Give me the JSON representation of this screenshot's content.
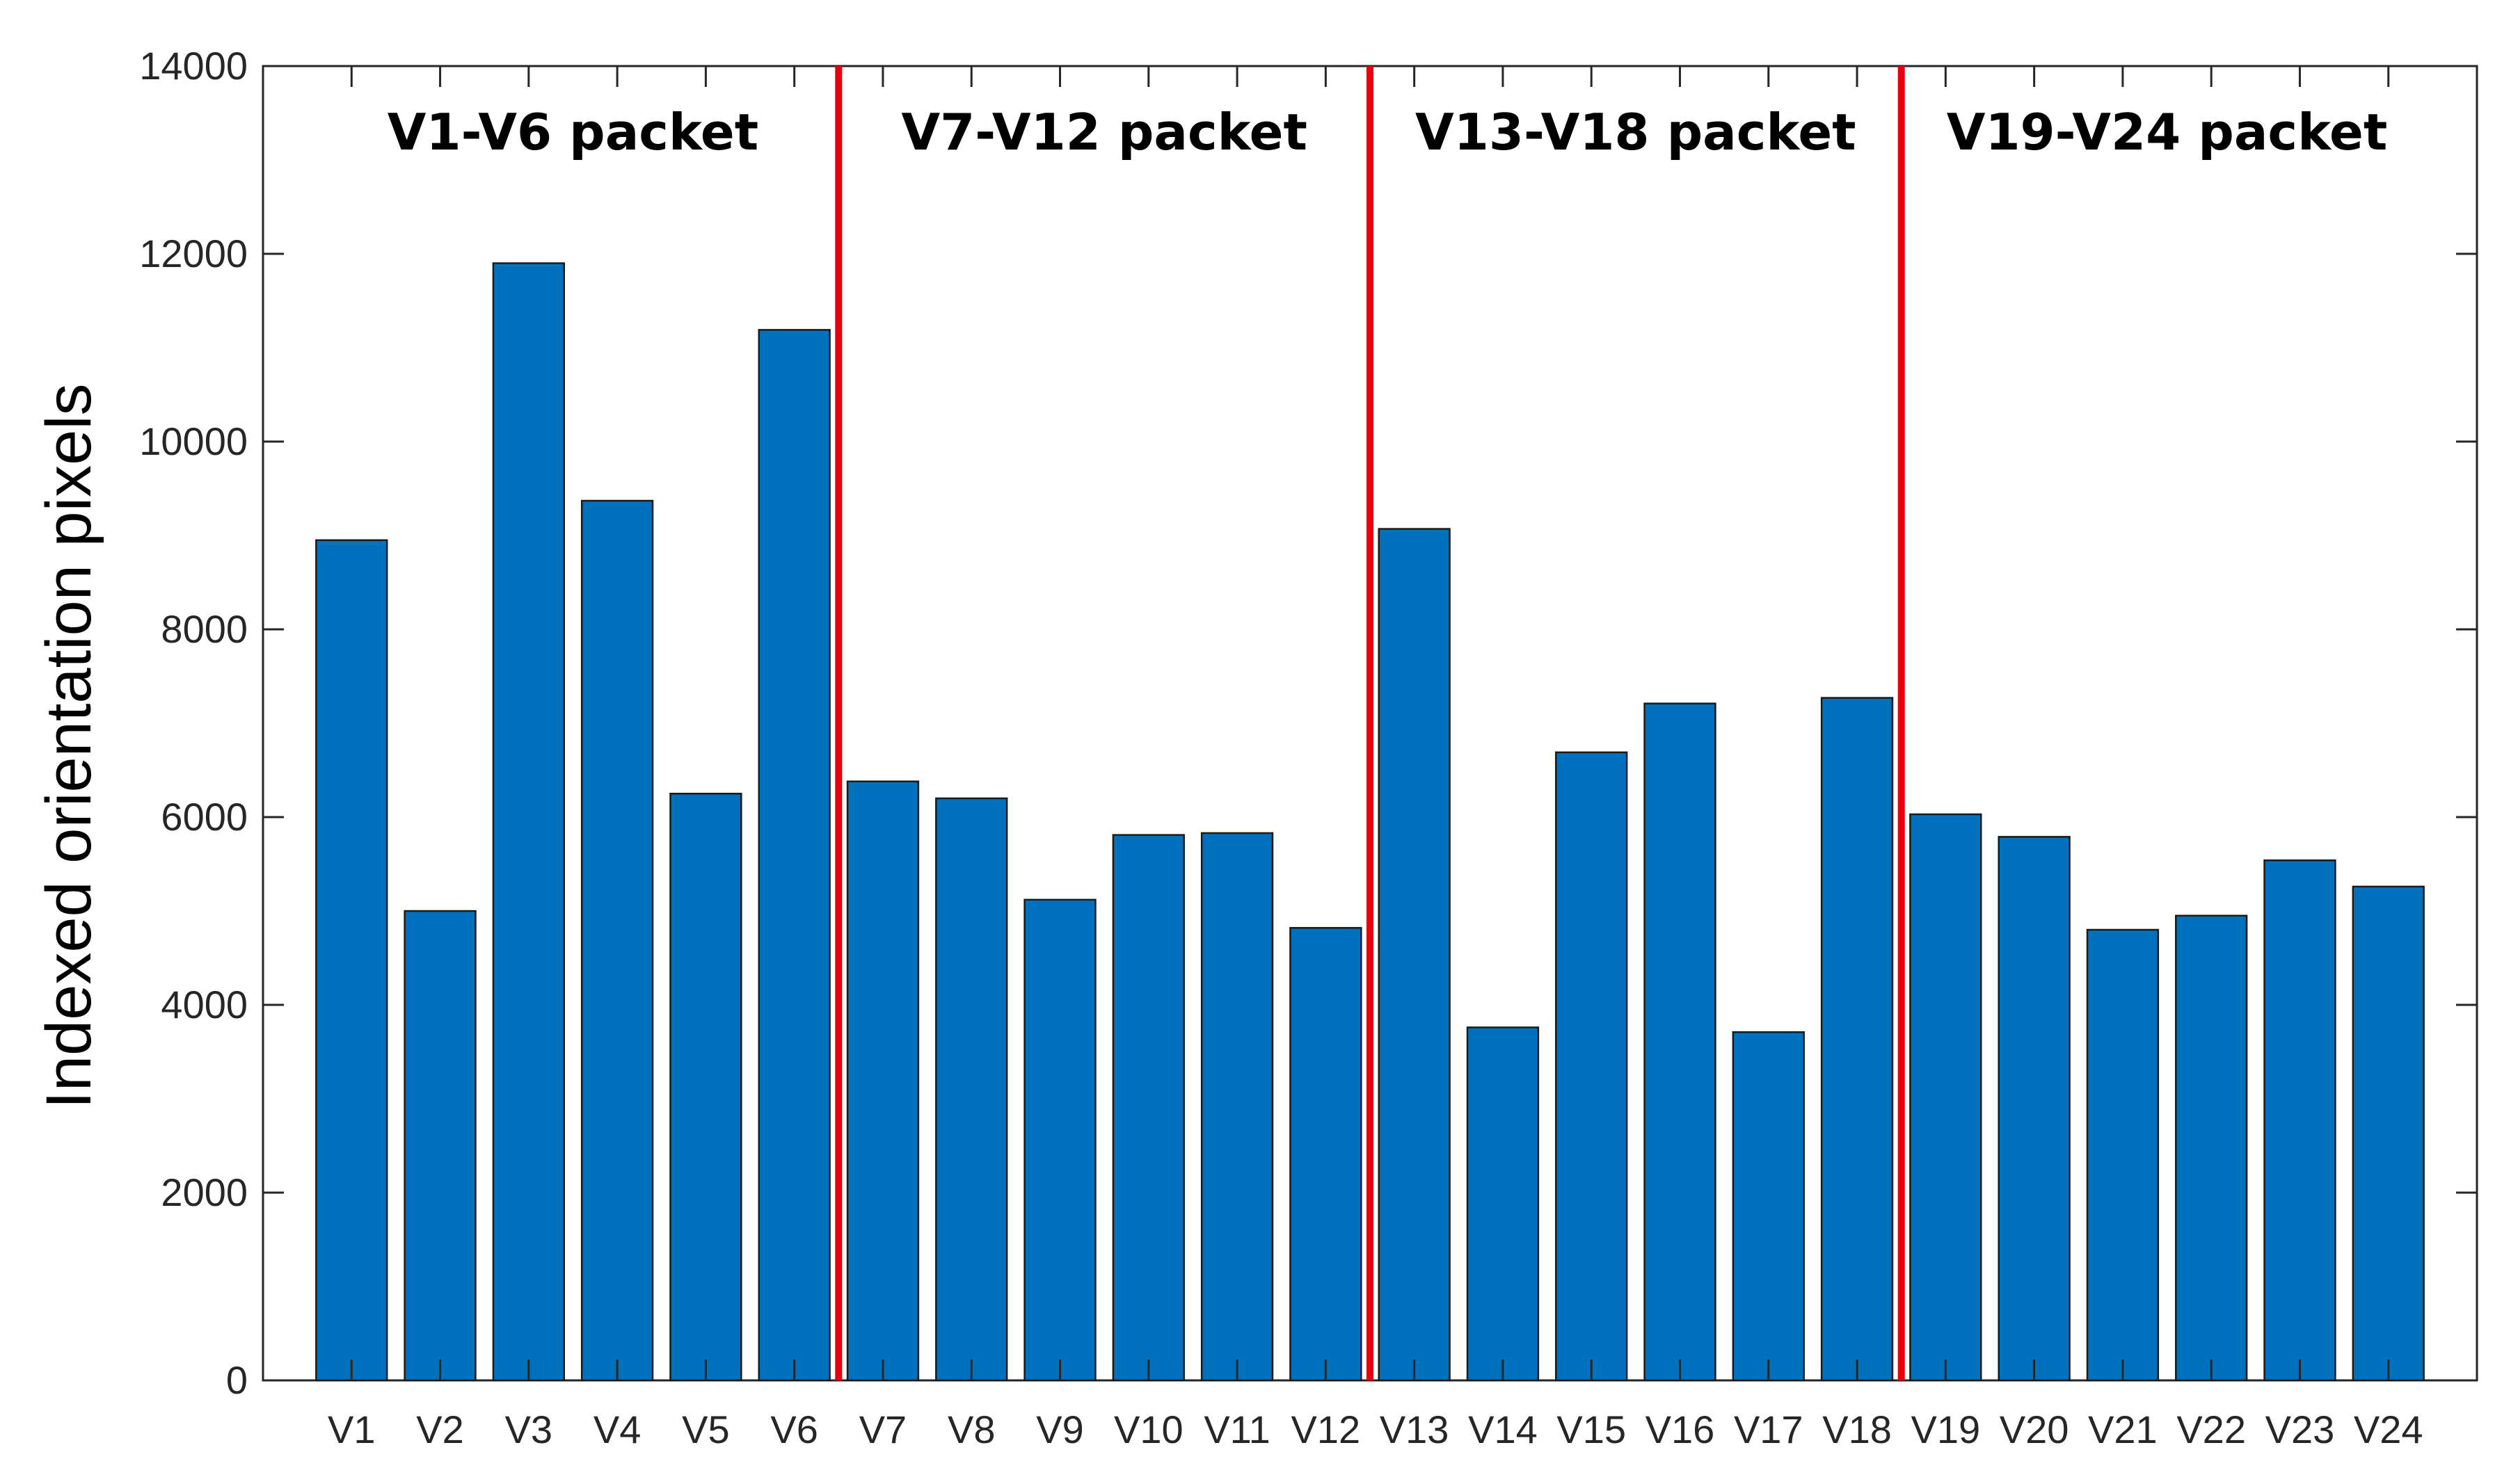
{
  "chart_data": {
    "type": "bar",
    "title": "",
    "xlabel": "",
    "ylabel": "Indexed orientation pixels",
    "ylim": [
      0,
      14000
    ],
    "yticks": [
      0,
      2000,
      4000,
      6000,
      8000,
      10000,
      12000,
      14000
    ],
    "grid": false,
    "categories": [
      "V1",
      "V2",
      "V3",
      "V4",
      "V5",
      "V6",
      "V7",
      "V8",
      "V9",
      "V10",
      "V11",
      "V12",
      "V13",
      "V14",
      "V15",
      "V16",
      "V17",
      "V18",
      "V19",
      "V20",
      "V21",
      "V22",
      "V23",
      "V24"
    ],
    "values": [
      8950,
      5000,
      11900,
      9370,
      6250,
      11190,
      6380,
      6200,
      5120,
      5810,
      5830,
      4820,
      9070,
      3760,
      6690,
      7210,
      3710,
      7270,
      6030,
      5790,
      4800,
      4950,
      5540,
      5260
    ],
    "bar_color": "#0072BD",
    "separator_color": "#E8000B",
    "separators_after_category": [
      6,
      12,
      18
    ],
    "groups": [
      {
        "label": "V1-V6 packet",
        "from": 1,
        "to": 6
      },
      {
        "label": "V7-V12 packet",
        "from": 7,
        "to": 12
      },
      {
        "label": "V13-V18 packet",
        "from": 13,
        "to": 18
      },
      {
        "label": "V19-V24 packet",
        "from": 19,
        "to": 24
      }
    ]
  }
}
